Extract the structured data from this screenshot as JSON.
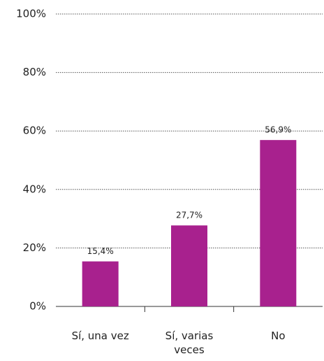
{
  "chart_data": {
    "type": "bar",
    "categories": [
      "Sí, una vez",
      "Sí, varias veces",
      "No"
    ],
    "values": [
      15.4,
      27.7,
      56.9
    ],
    "value_labels": [
      "15,4%",
      "27,7%",
      "56,9%"
    ],
    "color": "#a8218e",
    "ylim": [
      0,
      100
    ],
    "yticks": [
      {
        "value": 0,
        "label": "0%"
      },
      {
        "value": 20,
        "label": "20%"
      },
      {
        "value": 40,
        "label": "40%"
      },
      {
        "value": 60,
        "label": "60%"
      },
      {
        "value": 80,
        "label": "80%"
      },
      {
        "value": 100,
        "label": "100%"
      }
    ],
    "grid": true
  }
}
